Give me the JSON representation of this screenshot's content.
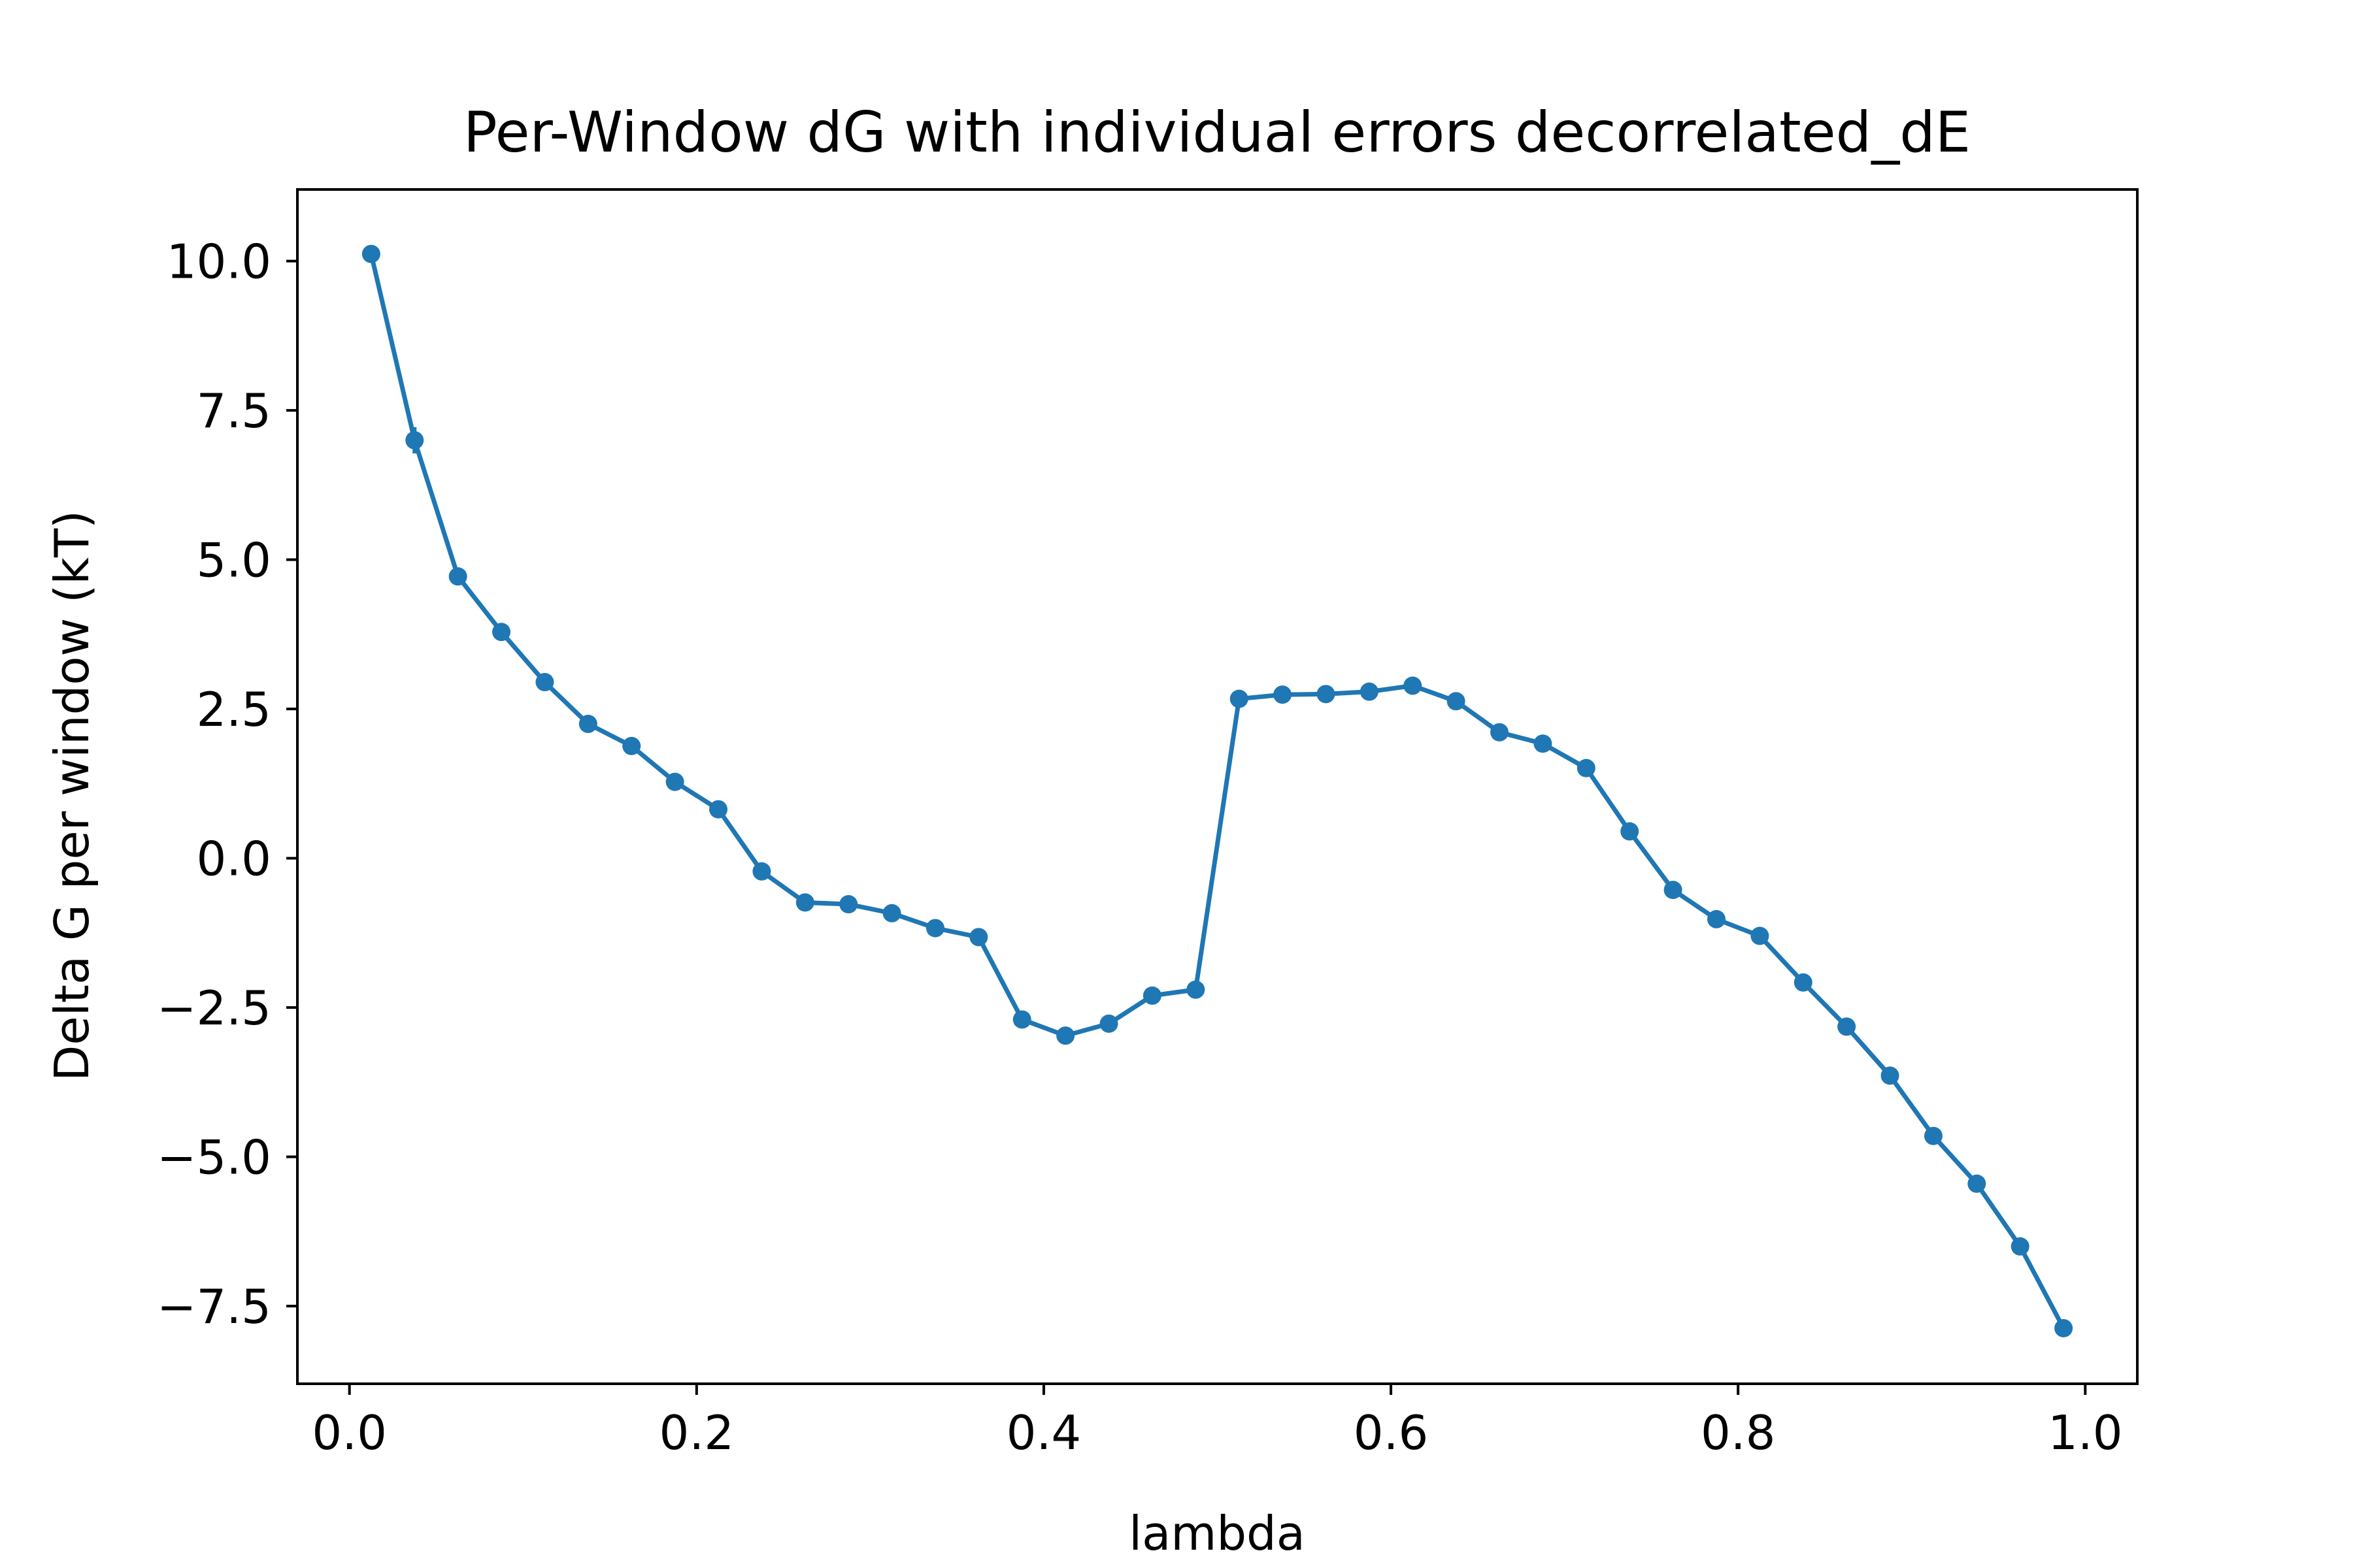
{
  "chart_data": {
    "type": "line",
    "title": "Per-Window dG with individual errors decorrelated_dE",
    "xlabel": "lambda",
    "ylabel": "Delta G per window (kT)",
    "xlim": [
      -0.03,
      1.03
    ],
    "ylim": [
      -8.8,
      11.2
    ],
    "xticks": [
      0.0,
      0.2,
      0.4,
      0.6,
      0.8,
      1.0
    ],
    "xtick_labels": [
      "0.0",
      "0.2",
      "0.4",
      "0.6",
      "0.8",
      "1.0"
    ],
    "yticks": [
      -7.5,
      -5.0,
      -2.5,
      0.0,
      2.5,
      5.0,
      7.5,
      10.0
    ],
    "ytick_labels": [
      "−7.5",
      "−5.0",
      "−2.5",
      "0.0",
      "2.5",
      "5.0",
      "7.5",
      "10.0"
    ],
    "grid": false,
    "color": "#1f77b4",
    "series": [
      {
        "x": [
          0.0125,
          0.0375,
          0.0625,
          0.0875,
          0.1125,
          0.1375,
          0.1625,
          0.1875,
          0.2125,
          0.2375,
          0.2625,
          0.2875,
          0.3125,
          0.3375,
          0.3625,
          0.3875,
          0.4125,
          0.4375,
          0.4625,
          0.4875,
          0.5125,
          0.5375,
          0.5625,
          0.5875,
          0.6125,
          0.6375,
          0.6625,
          0.6875,
          0.7125,
          0.7375,
          0.7625,
          0.7875,
          0.8125,
          0.8375,
          0.8625,
          0.8875,
          0.9125,
          0.9375,
          0.9625,
          0.9875
        ],
        "y": [
          10.12,
          7.0,
          4.72,
          3.79,
          2.95,
          2.25,
          1.88,
          1.28,
          0.82,
          -0.22,
          -0.74,
          -0.77,
          -0.92,
          -1.17,
          -1.32,
          -2.7,
          -2.97,
          -2.77,
          -2.3,
          -2.2,
          2.67,
          2.74,
          2.75,
          2.79,
          2.89,
          2.63,
          2.11,
          1.92,
          1.51,
          0.45,
          -0.53,
          -1.02,
          -1.3,
          -2.08,
          -2.82,
          -3.64,
          -4.65,
          -5.45,
          -6.5,
          -7.87
        ],
        "yerr": [
          0.0,
          0.22,
          0.05,
          0.05,
          0.05,
          0.05,
          0.05,
          0.05,
          0.05,
          0.05,
          0.05,
          0.05,
          0.05,
          0.05,
          0.05,
          0.05,
          0.05,
          0.05,
          0.05,
          0.05,
          0.05,
          0.05,
          0.05,
          0.05,
          0.05,
          0.05,
          0.05,
          0.05,
          0.05,
          0.05,
          0.05,
          0.05,
          0.05,
          0.05,
          0.05,
          0.05,
          0.05,
          0.05,
          0.05,
          0.05
        ]
      }
    ]
  }
}
